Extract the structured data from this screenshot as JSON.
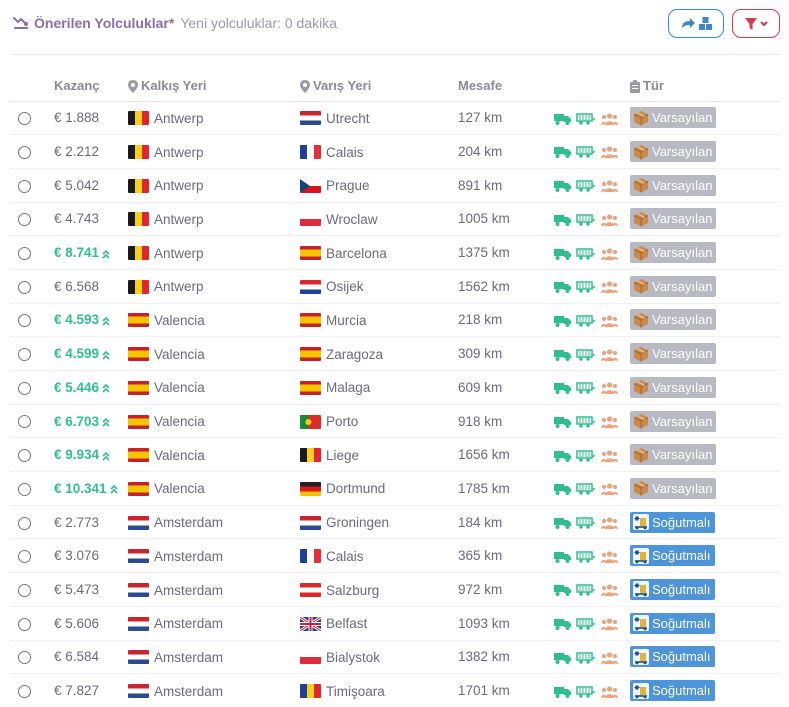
{
  "header": {
    "title": "Önerilen Yolculuklar*",
    "subtitle": "Yeni yolculuklar: 0 dakika",
    "title_icon": "route-icon",
    "share_icon": "share-cargo-icon",
    "filter_icon": "filter-icon"
  },
  "columns": {
    "earnings": "Kazanç",
    "origin": "Kalkış Yeri",
    "destination": "Varış Yeri",
    "distance": "Mesafe",
    "type": "Tür"
  },
  "colors": {
    "accent_purple": "#8a6fa8",
    "positive_green": "#2fbf8f",
    "badge_gray": "#b9b9c4",
    "badge_blue": "#4d94d8",
    "people_orange": "#f0a07a",
    "filter_red": "#d63a4a",
    "share_blue": "#3e88c7"
  },
  "rows": [
    {
      "earnings": "€ 1.888",
      "highlight": false,
      "origin_flag": "be",
      "origin": "Antwerp",
      "dest_flag": "nl",
      "destination": "Utrecht",
      "distance": "127 km",
      "type": "Varsayılan",
      "type_kind": "default"
    },
    {
      "earnings": "€ 2.212",
      "highlight": false,
      "origin_flag": "be",
      "origin": "Antwerp",
      "dest_flag": "fr",
      "destination": "Calais",
      "distance": "204 km",
      "type": "Varsayılan",
      "type_kind": "default"
    },
    {
      "earnings": "€ 5.042",
      "highlight": false,
      "origin_flag": "be",
      "origin": "Antwerp",
      "dest_flag": "cz",
      "destination": "Prague",
      "distance": "891 km",
      "type": "Varsayılan",
      "type_kind": "default"
    },
    {
      "earnings": "€ 4.743",
      "highlight": false,
      "origin_flag": "be",
      "origin": "Antwerp",
      "dest_flag": "pl",
      "destination": "Wroclaw",
      "distance": "1005 km",
      "type": "Varsayılan",
      "type_kind": "default"
    },
    {
      "earnings": "€ 8.741",
      "highlight": true,
      "origin_flag": "be",
      "origin": "Antwerp",
      "dest_flag": "es",
      "destination": "Barcelona",
      "distance": "1375 km",
      "type": "Varsayılan",
      "type_kind": "default"
    },
    {
      "earnings": "€ 6.568",
      "highlight": false,
      "origin_flag": "be",
      "origin": "Antwerp",
      "dest_flag": "hr",
      "destination": "Osijek",
      "distance": "1562 km",
      "type": "Varsayılan",
      "type_kind": "default"
    },
    {
      "earnings": "€ 4.593",
      "highlight": true,
      "origin_flag": "es",
      "origin": "Valencia",
      "dest_flag": "es",
      "destination": "Murcia",
      "distance": "218 km",
      "type": "Varsayılan",
      "type_kind": "default"
    },
    {
      "earnings": "€ 4.599",
      "highlight": true,
      "origin_flag": "es",
      "origin": "Valencia",
      "dest_flag": "es",
      "destination": "Zaragoza",
      "distance": "309 km",
      "type": "Varsayılan",
      "type_kind": "default"
    },
    {
      "earnings": "€ 5.446",
      "highlight": true,
      "origin_flag": "es",
      "origin": "Valencia",
      "dest_flag": "es",
      "destination": "Malaga",
      "distance": "609 km",
      "type": "Varsayılan",
      "type_kind": "default"
    },
    {
      "earnings": "€ 6.703",
      "highlight": true,
      "origin_flag": "es",
      "origin": "Valencia",
      "dest_flag": "pt",
      "destination": "Porto",
      "distance": "918 km",
      "type": "Varsayılan",
      "type_kind": "default"
    },
    {
      "earnings": "€ 9.934",
      "highlight": true,
      "origin_flag": "es",
      "origin": "Valencia",
      "dest_flag": "be",
      "destination": "Liege",
      "distance": "1656 km",
      "type": "Varsayılan",
      "type_kind": "default"
    },
    {
      "earnings": "€ 10.341",
      "highlight": true,
      "origin_flag": "es",
      "origin": "Valencia",
      "dest_flag": "de",
      "destination": "Dortmund",
      "distance": "1785 km",
      "type": "Varsayılan",
      "type_kind": "default"
    },
    {
      "earnings": "€ 2.773",
      "highlight": false,
      "origin_flag": "nl",
      "origin": "Amsterdam",
      "dest_flag": "nl",
      "destination": "Groningen",
      "distance": "184 km",
      "type": "Soğutmalı",
      "type_kind": "cold"
    },
    {
      "earnings": "€ 3.076",
      "highlight": false,
      "origin_flag": "nl",
      "origin": "Amsterdam",
      "dest_flag": "fr",
      "destination": "Calais",
      "distance": "365 km",
      "type": "Soğutmalı",
      "type_kind": "cold"
    },
    {
      "earnings": "€ 5.473",
      "highlight": false,
      "origin_flag": "nl",
      "origin": "Amsterdam",
      "dest_flag": "at",
      "destination": "Salzburg",
      "distance": "972 km",
      "type": "Soğutmalı",
      "type_kind": "cold"
    },
    {
      "earnings": "€ 5.606",
      "highlight": false,
      "origin_flag": "nl",
      "origin": "Amsterdam",
      "dest_flag": "gb",
      "destination": "Belfast",
      "distance": "1093 km",
      "type": "Soğutmalı",
      "type_kind": "cold"
    },
    {
      "earnings": "€ 6.584",
      "highlight": false,
      "origin_flag": "nl",
      "origin": "Amsterdam",
      "dest_flag": "pl",
      "destination": "Bialystok",
      "distance": "1382 km",
      "type": "Soğutmalı",
      "type_kind": "cold"
    },
    {
      "earnings": "€ 7.827",
      "highlight": false,
      "origin_flag": "nl",
      "origin": "Amsterdam",
      "dest_flag": "ro",
      "destination": "Timişoara",
      "distance": "1701 km",
      "type": "Soğutmalı",
      "type_kind": "cold"
    }
  ]
}
